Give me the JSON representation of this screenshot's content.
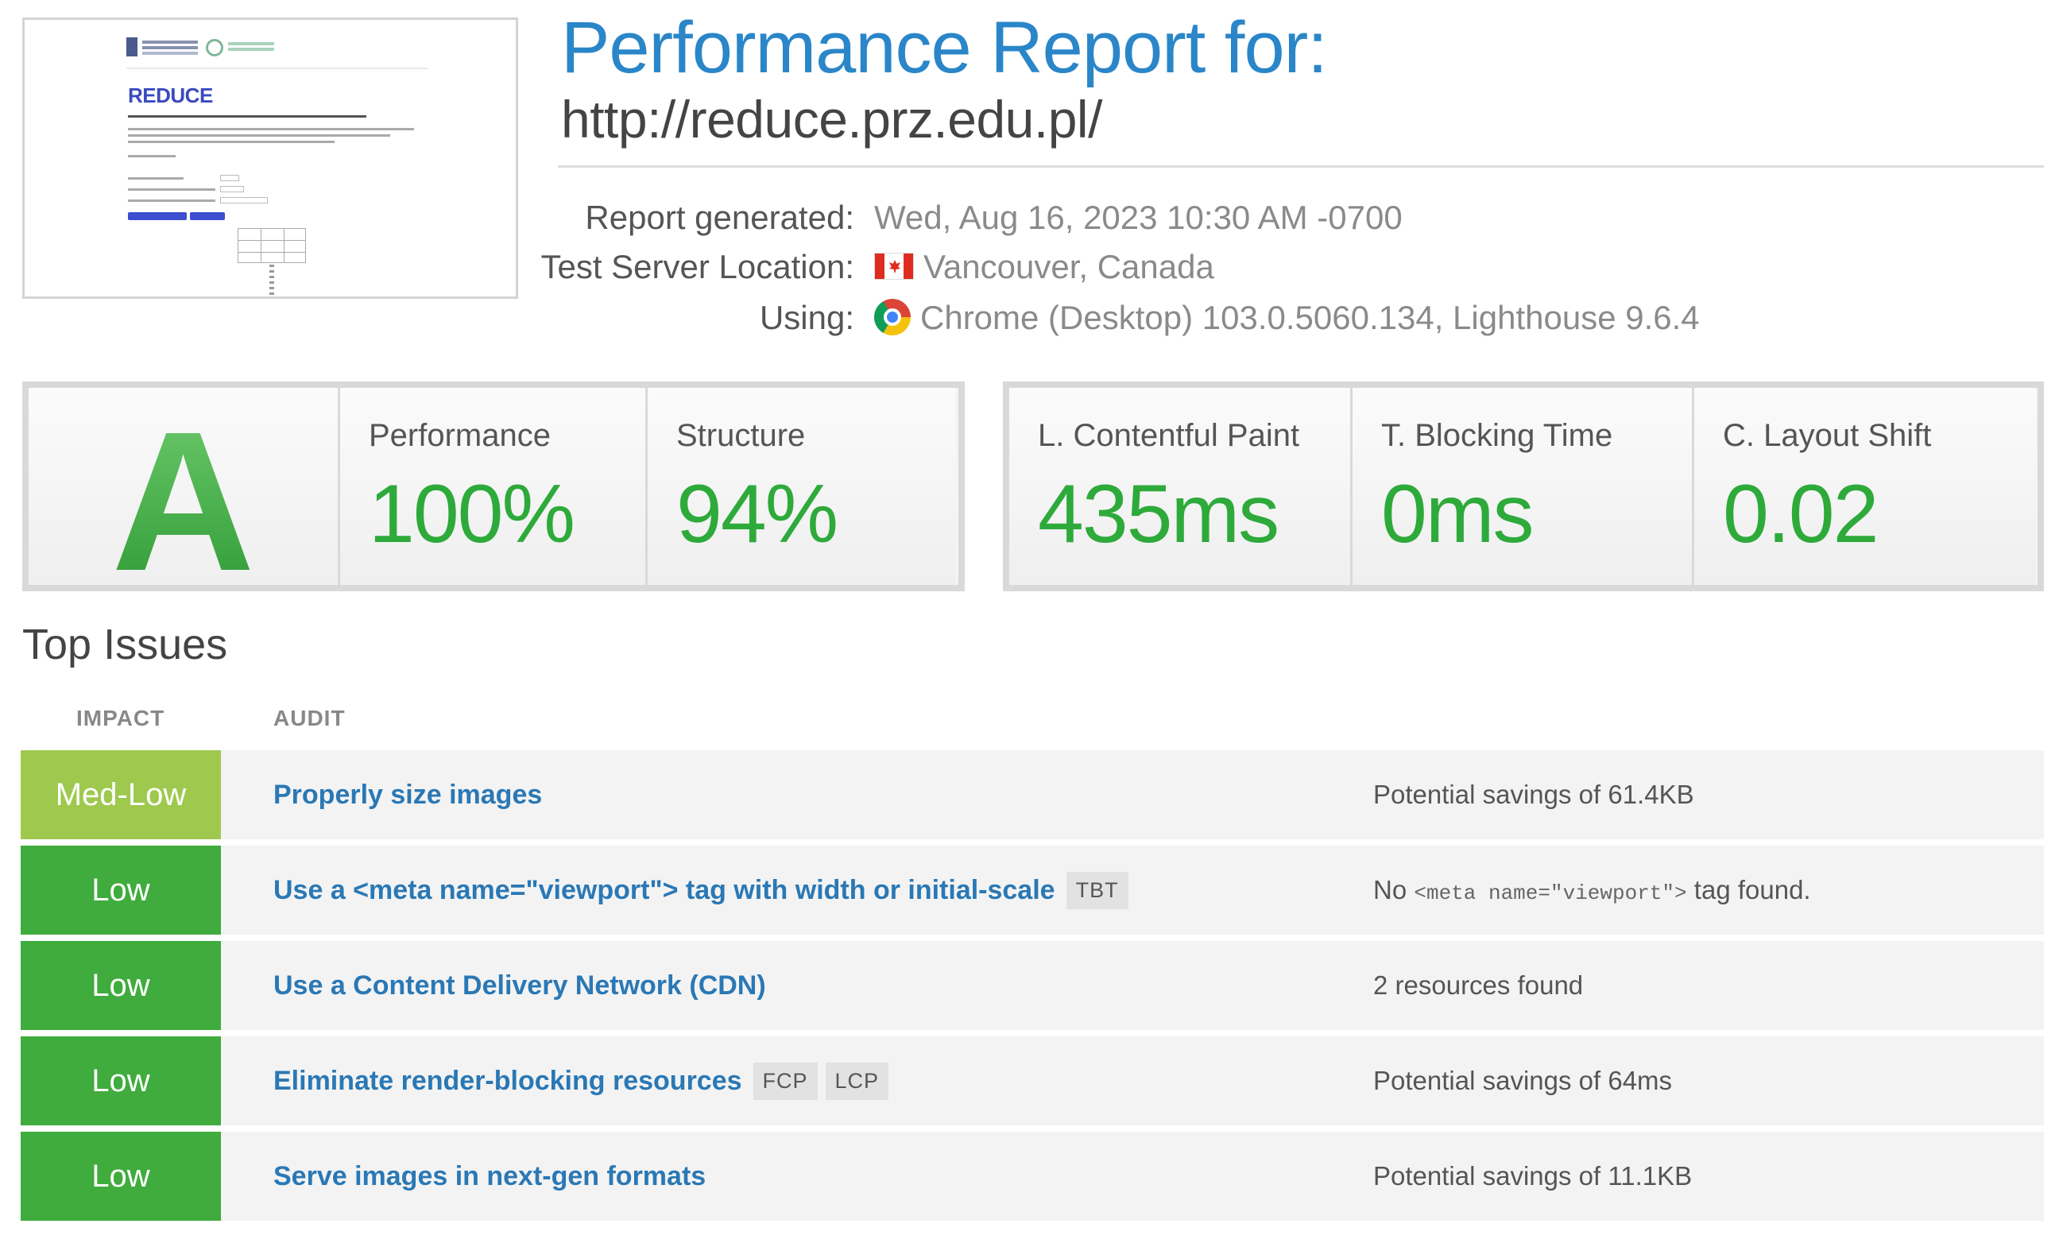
{
  "thumbnail": {
    "title": "REDUCE"
  },
  "header": {
    "title": "Performance Report for:",
    "url": "http://reduce.prz.edu.pl/"
  },
  "meta": [
    {
      "label": "Report generated:",
      "value": "Wed, Aug 16, 2023 10:30 AM -0700",
      "icon": ""
    },
    {
      "label": "Test Server Location:",
      "value": "Vancouver, Canada",
      "icon": "canada-flag-icon"
    },
    {
      "label": "Using:",
      "value": "Chrome (Desktop) 103.0.5060.134, Lighthouse 9.6.4",
      "icon": "chrome-icon"
    }
  ],
  "scores": {
    "grade": "A",
    "performance": {
      "label": "Performance",
      "value": "100%"
    },
    "structure": {
      "label": "Structure",
      "value": "94%"
    }
  },
  "web_vitals": {
    "lcp": {
      "label": "L. Contentful Paint",
      "value": "435ms"
    },
    "tbt": {
      "label": "T. Blocking Time",
      "value": "0ms"
    },
    "cls": {
      "label": "C. Layout Shift",
      "value": "0.02"
    }
  },
  "top_issues": {
    "title": "Top Issues",
    "col_impact": "IMPACT",
    "col_audit": "AUDIT",
    "rows": [
      {
        "impact": "Med-Low",
        "audit": "Properly size images",
        "tags": [],
        "detail": "Potential savings of 61.4KB"
      },
      {
        "impact": "Low",
        "audit": "Use a <meta name=\"viewport\"> tag with width or initial-scale",
        "tags": [
          "TBT"
        ],
        "detail_pre": "No",
        "detail_code": "<meta name=\"viewport\">",
        "detail_post": "tag found."
      },
      {
        "impact": "Low",
        "audit": "Use a Content Delivery Network (CDN)",
        "tags": [],
        "detail": "2 resources found"
      },
      {
        "impact": "Low",
        "audit": "Eliminate render-blocking resources",
        "tags": [
          "FCP",
          "LCP"
        ],
        "detail": "Potential savings of 64ms"
      },
      {
        "impact": "Low",
        "audit": "Serve images in next-gen formats",
        "tags": [],
        "detail": "Potential savings of 11.1KB"
      }
    ]
  },
  "colors": {
    "accent": "#2a86c8",
    "good": "#2eaa3b",
    "impact_low": "#3fac3d",
    "impact_medlow": "#9ec94e",
    "link": "#2a78b5"
  }
}
